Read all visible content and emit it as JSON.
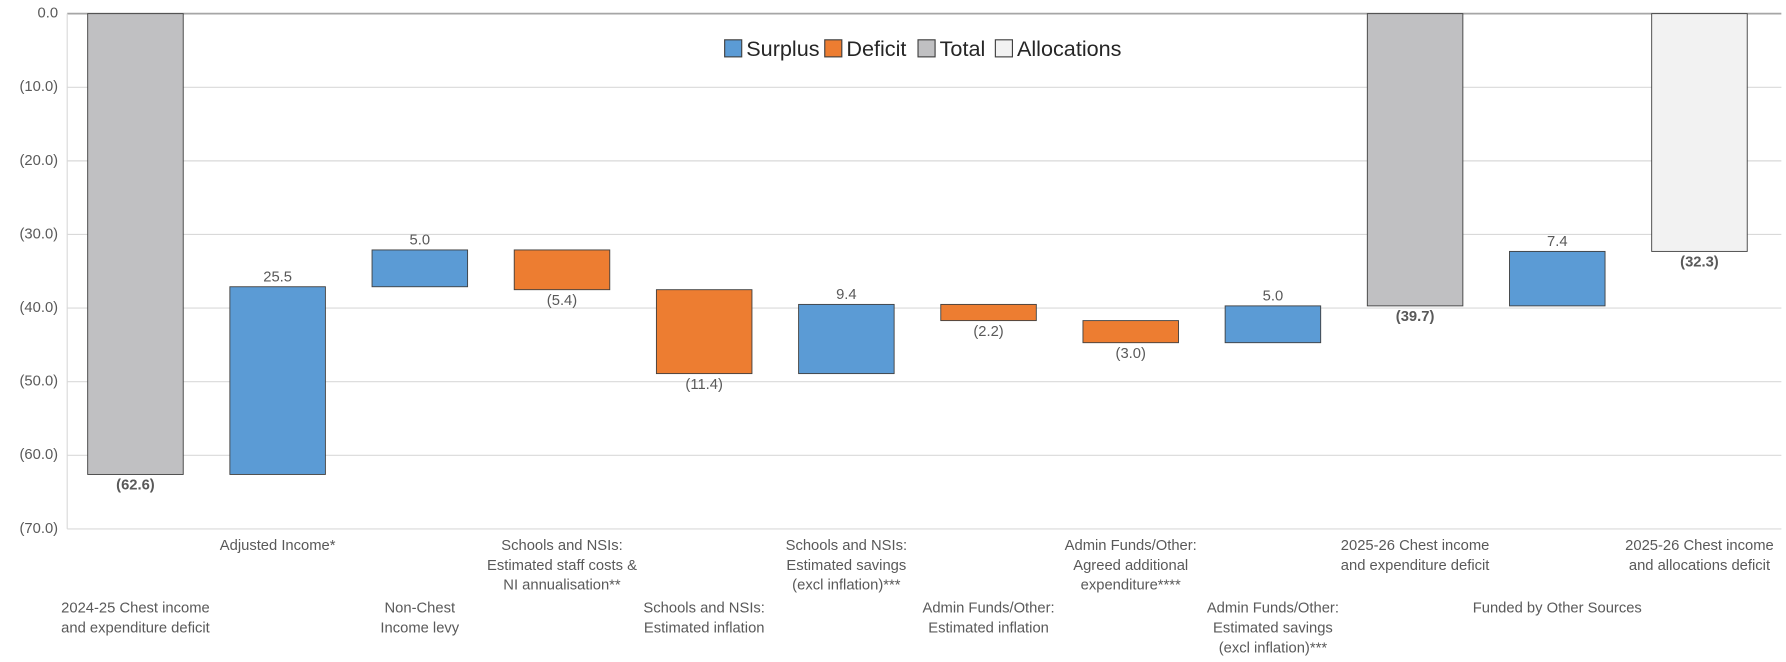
{
  "chart_data": {
    "type": "waterfall",
    "categories": [
      [
        "2024-25 Chest income",
        "and expenditure deficit"
      ],
      [
        "Adjusted Income*"
      ],
      [
        "Non-Chest",
        "Income levy"
      ],
      [
        "Schools and NSIs:",
        "Estimated staff costs &",
        "NI annualisation**"
      ],
      [
        "Schools and NSIs:",
        "Estimated inflation"
      ],
      [
        "Schools and NSIs:",
        "Estimated savings",
        "(excl inflation)***"
      ],
      [
        "Admin Funds/Other:",
        "Estimated inflation"
      ],
      [
        "Admin Funds/Other:",
        "Agreed additional",
        "expenditure****"
      ],
      [
        "Admin Funds/Other:",
        "Estimated savings",
        "(excl inflation)***"
      ],
      [
        "2025-26 Chest income",
        "and expenditure deficit"
      ],
      [
        "Funded by Other Sources"
      ],
      [
        "2025-26 Chest income",
        "and allocations deficit"
      ]
    ],
    "series": [
      {
        "name": "Surplus",
        "color": "#5b9bd5",
        "absolute": false,
        "values": [
          null,
          25.5,
          5.0,
          null,
          null,
          9.4,
          null,
          null,
          5.0,
          null,
          7.4,
          null
        ],
        "value_labels": [
          null,
          "25.5",
          "5.0",
          null,
          null,
          "9.4",
          null,
          null,
          "5.0",
          null,
          "7.4",
          null
        ]
      },
      {
        "name": "Deficit",
        "color": "#ed7d31",
        "absolute": false,
        "values": [
          null,
          null,
          null,
          -5.4,
          -11.4,
          null,
          -2.2,
          -3.0,
          null,
          null,
          null,
          null
        ],
        "value_labels": [
          null,
          null,
          null,
          "(5.4)",
          "(11.4)",
          null,
          "(2.2)",
          "(3.0)",
          null,
          null,
          null,
          null
        ]
      },
      {
        "name": "Total",
        "color": "#c0c0c2",
        "absolute": true,
        "values": [
          -62.6,
          null,
          null,
          null,
          null,
          null,
          null,
          null,
          null,
          -39.7,
          null,
          null
        ],
        "value_labels": [
          "(62.6)",
          null,
          null,
          null,
          null,
          null,
          null,
          null,
          null,
          "(39.7)",
          null,
          null
        ]
      },
      {
        "name": "Allocations",
        "color": "#f2f2f2",
        "absolute": true,
        "values": [
          null,
          null,
          null,
          null,
          null,
          null,
          null,
          null,
          null,
          null,
          null,
          -32.3
        ],
        "value_labels": [
          null,
          null,
          null,
          null,
          null,
          null,
          null,
          null,
          null,
          null,
          null,
          "(32.3)"
        ]
      }
    ],
    "ylim": [
      -70,
      0
    ],
    "yticks": [
      {
        "value": 0,
        "label": "0.0"
      },
      {
        "value": -10,
        "label": "(10.0)"
      },
      {
        "value": -20,
        "label": "(20.0)"
      },
      {
        "value": -30,
        "label": "(30.0)"
      },
      {
        "value": -40,
        "label": "(40.0)"
      },
      {
        "value": -50,
        "label": "(50.0)"
      },
      {
        "value": -60,
        "label": "(60.0)"
      },
      {
        "value": -70,
        "label": "(70.0)"
      }
    ],
    "grid": true,
    "legend": "top"
  }
}
